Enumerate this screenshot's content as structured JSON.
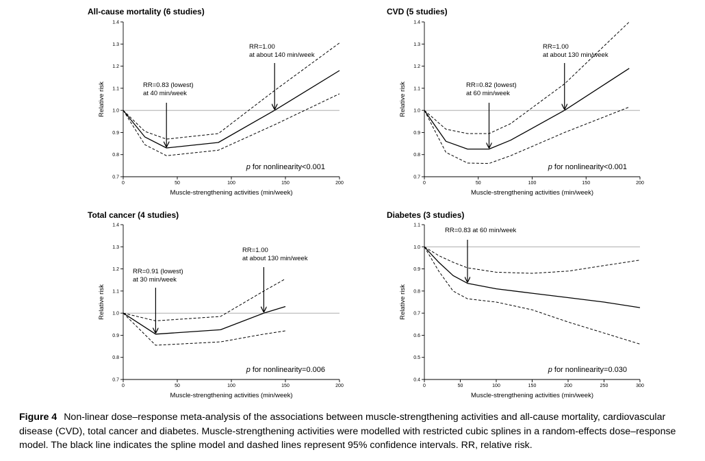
{
  "chart_data": [
    {
      "type": "line",
      "title": "All-cause mortality (6 studies)",
      "xlabel": "Muscle-strengthening activities (min/week)",
      "ylabel": "Relative risk",
      "xlim": [
        0,
        200
      ],
      "ylim": [
        0.7,
        1.4
      ],
      "xticks": [
        0,
        50,
        100,
        150,
        200
      ],
      "yticks": [
        0.7,
        0.8,
        0.9,
        1.0,
        1.1,
        1.2,
        1.3,
        1.4
      ],
      "xtick_labels": [
        "0",
        "50",
        "100",
        "150",
        "200"
      ],
      "ytick_labels": [
        "0.7",
        "0.8",
        "0.9",
        "1.0",
        "1.1",
        "1.2",
        "1.3",
        "1.4"
      ],
      "reference_line": 1.0,
      "series": [
        {
          "style": "solid",
          "x": [
            0,
            20,
            40,
            88,
            140,
            200
          ],
          "y": [
            1.0,
            0.88,
            0.83,
            0.855,
            1.0,
            1.18
          ]
        },
        {
          "style": "dashed",
          "x": [
            0,
            20,
            40,
            88,
            140,
            200
          ],
          "y": [
            1.0,
            0.905,
            0.87,
            0.895,
            1.09,
            1.305
          ]
        },
        {
          "style": "dashed",
          "x": [
            0,
            20,
            40,
            88,
            140,
            200
          ],
          "y": [
            1.0,
            0.845,
            0.795,
            0.82,
            0.935,
            1.075
          ]
        }
      ],
      "annotations": [
        {
          "lines": [
            "RR=0.83 (lowest)",
            "at 40 min/week"
          ],
          "x": 40,
          "y": 0.83
        },
        {
          "lines": [
            "RR=1.00",
            "at about 140 min/week"
          ],
          "x": 140,
          "y": 1.0
        }
      ],
      "p_label": "p",
      "p_text": " for nonlinearity<0.001"
    },
    {
      "type": "line",
      "title": "CVD (5 studies)",
      "xlabel": "Muscle-strengthening activities (min/week)",
      "ylabel": "Relative risk",
      "xlim": [
        0,
        200
      ],
      "ylim": [
        0.7,
        1.4
      ],
      "xticks": [
        0,
        50,
        100,
        150,
        200
      ],
      "yticks": [
        0.7,
        0.8,
        0.9,
        1.0,
        1.1,
        1.2,
        1.3,
        1.4
      ],
      "xtick_labels": [
        "0",
        "50",
        "100",
        "150",
        "200"
      ],
      "ytick_labels": [
        "0.7",
        "0.8",
        "0.9",
        "1.0",
        "1.1",
        "1.2",
        "1.3",
        "1.4"
      ],
      "reference_line": 1.0,
      "series": [
        {
          "style": "solid",
          "x": [
            0,
            20,
            40,
            60,
            80,
            130,
            190
          ],
          "y": [
            1.0,
            0.86,
            0.825,
            0.825,
            0.865,
            1.0,
            1.19
          ]
        },
        {
          "style": "dashed",
          "x": [
            0,
            20,
            40,
            60,
            80,
            130,
            190
          ],
          "y": [
            1.0,
            0.915,
            0.895,
            0.895,
            0.94,
            1.12,
            1.4
          ]
        },
        {
          "style": "dashed",
          "x": [
            0,
            20,
            40,
            60,
            80,
            130,
            190
          ],
          "y": [
            1.0,
            0.81,
            0.762,
            0.76,
            0.795,
            0.9,
            1.015
          ]
        }
      ],
      "annotations": [
        {
          "lines": [
            "RR=0.82 (lowest)",
            "at 60 min/week"
          ],
          "x": 60,
          "y": 0.825
        },
        {
          "lines": [
            "RR=1.00",
            "at about 130 min/week"
          ],
          "x": 130,
          "y": 1.0
        }
      ],
      "p_label": "p",
      "p_text": " for nonlinearity<0.001"
    },
    {
      "type": "line",
      "title": "Total cancer (4 studies)",
      "xlabel": "Muscle-strengthening activities (min/week)",
      "ylabel": "Relative risk",
      "xlim": [
        0,
        200
      ],
      "ylim": [
        0.7,
        1.4
      ],
      "xticks": [
        0,
        50,
        100,
        150,
        200
      ],
      "yticks": [
        0.7,
        0.8,
        0.9,
        1.0,
        1.1,
        1.2,
        1.3,
        1.4
      ],
      "xtick_labels": [
        "0",
        "50",
        "100",
        "150",
        "200"
      ],
      "ytick_labels": [
        "0.7",
        "0.8",
        "0.9",
        "1.0",
        "1.1",
        "1.2",
        "1.3",
        "1.4"
      ],
      "reference_line": 1.0,
      "series": [
        {
          "style": "solid",
          "x": [
            0,
            30,
            90,
            130,
            150
          ],
          "y": [
            1.0,
            0.905,
            0.925,
            1.0,
            1.03
          ]
        },
        {
          "style": "dashed",
          "x": [
            0,
            30,
            90,
            130,
            150
          ],
          "y": [
            1.0,
            0.965,
            0.985,
            1.1,
            1.155
          ]
        },
        {
          "style": "dashed",
          "x": [
            0,
            30,
            90,
            130,
            150
          ],
          "y": [
            1.0,
            0.855,
            0.87,
            0.905,
            0.92
          ]
        }
      ],
      "annotations": [
        {
          "lines": [
            "RR=0.91 (lowest)",
            "at 30 min/week"
          ],
          "x": 30,
          "y": 0.905
        },
        {
          "lines": [
            "RR=1.00",
            "at about 130 min/week"
          ],
          "x": 130,
          "y": 1.0
        }
      ],
      "p_label": "p",
      "p_text": " for nonlinearity=0.006"
    },
    {
      "type": "line",
      "title": "Diabetes (3 studies)",
      "xlabel": "Muscle-strengthening activities (min/week)",
      "ylabel": "Relative risk",
      "xlim": [
        0,
        300
      ],
      "ylim": [
        0.4,
        1.1
      ],
      "xticks": [
        0,
        50,
        100,
        150,
        200,
        250,
        300
      ],
      "yticks": [
        0.4,
        0.5,
        0.6,
        0.7,
        0.8,
        0.9,
        1.0,
        1.1
      ],
      "xtick_labels": [
        "0",
        "50",
        "100",
        "150",
        "200",
        "250",
        "300"
      ],
      "ytick_labels": [
        "0.4",
        "0.5",
        "0.6",
        "0.7",
        "0.8",
        "0.9",
        "1.0",
        "1.1"
      ],
      "reference_line": 1.0,
      "series": [
        {
          "style": "solid",
          "x": [
            0,
            20,
            40,
            60,
            100,
            150,
            200,
            250,
            300
          ],
          "y": [
            1.0,
            0.93,
            0.87,
            0.835,
            0.81,
            0.79,
            0.77,
            0.75,
            0.725
          ]
        },
        {
          "style": "dashed",
          "x": [
            0,
            20,
            40,
            60,
            100,
            150,
            200,
            250,
            300
          ],
          "y": [
            1.0,
            0.96,
            0.93,
            0.905,
            0.885,
            0.88,
            0.89,
            0.915,
            0.94
          ]
        },
        {
          "style": "dashed",
          "x": [
            0,
            20,
            40,
            60,
            100,
            150,
            200,
            250,
            300
          ],
          "y": [
            1.0,
            0.89,
            0.8,
            0.765,
            0.75,
            0.715,
            0.66,
            0.61,
            0.56
          ]
        }
      ],
      "annotations": [
        {
          "lines": [
            "RR=0.83 at 60 min/week"
          ],
          "x": 60,
          "y": 0.835
        }
      ],
      "p_label": "p",
      "p_text": " for nonlinearity=0.030"
    }
  ],
  "caption": {
    "figure_number": "Figure 4",
    "text": "Non-linear dose–response meta-analysis of the associations between muscle-strengthening activities and all-cause mortality, cardiovascular disease (CVD), total cancer and diabetes. Muscle-strengthening activities were modelled with restricted cubic splines in a random-effects dose–response model. The black line indicates the spline model and dashed lines represent 95% confidence intervals. RR, relative risk."
  }
}
